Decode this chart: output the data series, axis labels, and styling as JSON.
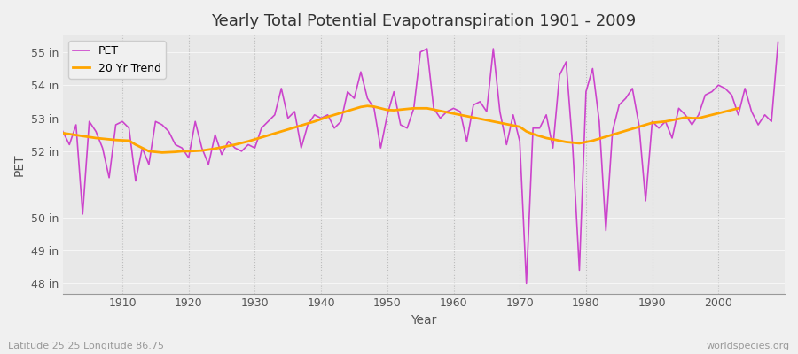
{
  "title": "Yearly Total Potential Evapotranspiration 1901 - 2009",
  "xlabel": "Year",
  "ylabel": "PET",
  "subtitle_left": "Latitude 25.25 Longitude 86.75",
  "subtitle_right": "worldspecies.org",
  "ylim": [
    47.7,
    55.5
  ],
  "yticks": [
    48,
    49,
    50,
    52,
    53,
    54,
    55
  ],
  "ytick_labels": [
    "48 in",
    "49 in",
    "50 in",
    "52 in",
    "53 in",
    "54 in",
    "55 in"
  ],
  "xticks": [
    1910,
    1920,
    1930,
    1940,
    1950,
    1960,
    1970,
    1980,
    1990,
    2000
  ],
  "pet_color": "#cc44cc",
  "trend_color": "#ffa500",
  "bg_color": "#f0f0f0",
  "plot_bg_color": "#e8e8e8",
  "legend_bg": "#f0f0f0",
  "pet_label": "PET",
  "trend_label": "20 Yr Trend",
  "years": [
    1901,
    1902,
    1903,
    1904,
    1905,
    1906,
    1907,
    1908,
    1909,
    1910,
    1911,
    1912,
    1913,
    1914,
    1915,
    1916,
    1917,
    1918,
    1919,
    1920,
    1921,
    1922,
    1923,
    1924,
    1925,
    1926,
    1927,
    1928,
    1929,
    1930,
    1931,
    1932,
    1933,
    1934,
    1935,
    1936,
    1937,
    1938,
    1939,
    1940,
    1941,
    1942,
    1943,
    1944,
    1945,
    1946,
    1947,
    1948,
    1949,
    1950,
    1951,
    1952,
    1953,
    1954,
    1955,
    1956,
    1957,
    1958,
    1959,
    1960,
    1961,
    1962,
    1963,
    1964,
    1965,
    1966,
    1967,
    1968,
    1969,
    1970,
    1971,
    1972,
    1973,
    1974,
    1975,
    1976,
    1977,
    1978,
    1979,
    1980,
    1981,
    1982,
    1983,
    1984,
    1985,
    1986,
    1987,
    1988,
    1989,
    1990,
    1991,
    1992,
    1993,
    1994,
    1995,
    1996,
    1997,
    1998,
    1999,
    2000,
    2001,
    2002,
    2003,
    2004,
    2005,
    2006,
    2007,
    2008,
    2009
  ],
  "pet_values": [
    52.6,
    52.2,
    52.8,
    50.1,
    52.9,
    52.6,
    52.1,
    51.2,
    52.8,
    52.9,
    52.7,
    51.1,
    52.1,
    51.6,
    52.9,
    52.8,
    52.6,
    52.2,
    52.1,
    51.8,
    52.9,
    52.1,
    51.6,
    52.5,
    51.9,
    52.3,
    52.1,
    52.0,
    52.2,
    52.1,
    52.7,
    52.9,
    53.1,
    53.9,
    53.0,
    53.2,
    52.1,
    52.8,
    53.1,
    53.0,
    53.1,
    52.7,
    52.9,
    53.8,
    53.6,
    54.4,
    53.6,
    53.3,
    52.1,
    53.1,
    53.8,
    52.8,
    52.7,
    53.3,
    55.0,
    55.1,
    53.3,
    53.0,
    53.2,
    53.3,
    53.2,
    52.3,
    53.4,
    53.5,
    53.2,
    55.1,
    53.2,
    52.2,
    53.1,
    52.3,
    48.0,
    52.7,
    52.7,
    53.1,
    52.1,
    54.3,
    54.7,
    52.1,
    48.4,
    53.8,
    54.5,
    52.9,
    49.6,
    52.6,
    53.4,
    53.6,
    53.9,
    52.8,
    50.5,
    52.9,
    52.7,
    52.9,
    52.4,
    53.3,
    53.1,
    52.8,
    53.1,
    53.7,
    53.8,
    54.0,
    53.9,
    53.7,
    53.1,
    53.9,
    53.2,
    52.8,
    53.1,
    52.9,
    55.3
  ],
  "trend_values": [
    52.55,
    52.52,
    52.49,
    52.46,
    52.43,
    52.4,
    52.38,
    52.36,
    52.34,
    52.33,
    52.32,
    52.2,
    52.1,
    52.0,
    51.98,
    51.96,
    51.97,
    51.98,
    52.0,
    52.0,
    52.01,
    52.02,
    52.05,
    52.08,
    52.12,
    52.16,
    52.2,
    52.25,
    52.3,
    52.36,
    52.42,
    52.48,
    52.54,
    52.6,
    52.66,
    52.72,
    52.78,
    52.84,
    52.9,
    52.97,
    53.04,
    53.1,
    53.16,
    53.22,
    53.28,
    53.34,
    53.37,
    53.35,
    53.3,
    53.25,
    53.24,
    53.26,
    53.28,
    53.3,
    53.3,
    53.3,
    53.26,
    53.22,
    53.18,
    53.14,
    53.1,
    53.06,
    53.02,
    52.98,
    52.94,
    52.9,
    52.86,
    52.82,
    52.78,
    52.74,
    52.6,
    52.52,
    52.46,
    52.4,
    52.36,
    52.32,
    52.28,
    52.26,
    52.24,
    52.28,
    52.32,
    52.38,
    52.44,
    52.5,
    52.56,
    52.62,
    52.68,
    52.74,
    52.8,
    52.86,
    52.88,
    52.9,
    52.94,
    52.98,
    53.02,
    53.0,
    53.0,
    53.05,
    53.1,
    53.15,
    53.2,
    53.25,
    53.3,
    null,
    null,
    null,
    null,
    null,
    null
  ]
}
